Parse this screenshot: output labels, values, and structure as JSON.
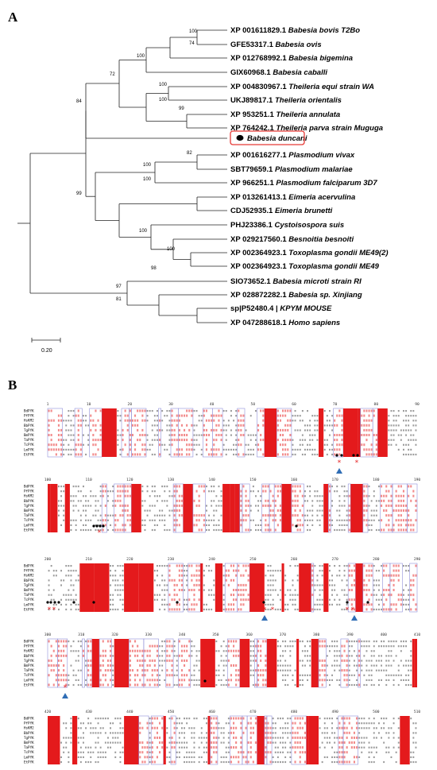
{
  "panels": {
    "a": "A",
    "b": "B"
  },
  "tree": {
    "scale_label": "0.20",
    "highlight_color": "#e53935",
    "leaves": [
      {
        "acc": "XP 001611829.1",
        "sp": "Babesia bovis T2Bo"
      },
      {
        "acc": "GFE53317.1",
        "sp": "Babesia ovis"
      },
      {
        "acc": "XP 012768992.1",
        "sp": "Babesia bigemina"
      },
      {
        "acc": "GIX60968.1",
        "sp": "Babesia caballi"
      },
      {
        "acc": "XP 004830967.1",
        "sp": "Theileria equi strain WA"
      },
      {
        "acc": "UKJ89817.1",
        "sp": "Theileria orientalis"
      },
      {
        "acc": "XP 953251.1",
        "sp": "Theileria annulata"
      },
      {
        "acc": "XP 764242.1",
        "sp": "Theileria parva strain Muguga"
      },
      {
        "acc": "",
        "sp": "Babesia duncani"
      },
      {
        "acc": "XP 001616277.1",
        "sp": "Plasmodium vivax"
      },
      {
        "acc": "SBT79659.1",
        "sp": "Plasmodium malariae"
      },
      {
        "acc": "XP 966251.1",
        "sp": "Plasmodium falciparum 3D7"
      },
      {
        "acc": "XP 013261413.1",
        "sp": "Eimeria acervulina"
      },
      {
        "acc": "CDJ52935.1",
        "sp": "Eimeria brunetti"
      },
      {
        "acc": "PHJ23386.1",
        "sp": "Cystoisospora suis"
      },
      {
        "acc": "XP 029217560.1",
        "sp": "Besnoitia besnoiti"
      },
      {
        "acc": "XP 002364923.1",
        "sp": "Toxoplasma gondii ME49(2)"
      },
      {
        "acc": "XP 002364923.1",
        "sp": "Toxoplasma gondii ME49"
      },
      {
        "acc": "SIO73652.1",
        "sp": "Babesia microti strain RI"
      },
      {
        "acc": "XP 028872282.1",
        "sp": "Babesia sp. Xinjiang"
      },
      {
        "acc": "sp|P52480.4 |",
        "sp": "KPYM MOUSE"
      },
      {
        "acc": "XP 047288618.1",
        "sp": "Homo sapiens"
      }
    ],
    "bootstraps": [
      "100",
      "74",
      "100",
      "72",
      "100",
      "100",
      "99",
      "84",
      "82",
      "100",
      "99",
      "100",
      "100",
      "100",
      "98",
      "97",
      "81"
    ]
  },
  "alignment": {
    "names": [
      "BdPYK",
      "PfPYK",
      "HsKM2",
      "BbPYK",
      "TgPYK",
      "BmPYK",
      "TaPYK",
      "TcPYK",
      "LmPYK",
      "EtPYK"
    ],
    "mark_colors": {
      "conserved": "#e41a1c",
      "similar": "#e41a1c",
      "star": "#e41a1c",
      "triangle": "#2f6db5",
      "dot": "#000000"
    },
    "blocks": [
      {
        "ticks": [
          "1",
          "10",
          "20",
          "30",
          "40",
          "50",
          "60",
          "70",
          "80",
          "90"
        ]
      },
      {
        "ticks": [
          "100",
          "110",
          "120",
          "130",
          "140",
          "150",
          "160",
          "170",
          "180",
          "190"
        ]
      },
      {
        "ticks": [
          "200",
          "210",
          "220",
          "230",
          "240",
          "250",
          "260",
          "270",
          "280",
          "290"
        ]
      },
      {
        "ticks": [
          "300",
          "310",
          "320",
          "330",
          "340",
          "350",
          "360",
          "370",
          "380",
          "390",
          "400",
          "410"
        ]
      },
      {
        "ticks": [
          "420",
          "430",
          "440",
          "450",
          "460",
          "470",
          "480",
          "490",
          "500",
          "510"
        ]
      }
    ]
  }
}
